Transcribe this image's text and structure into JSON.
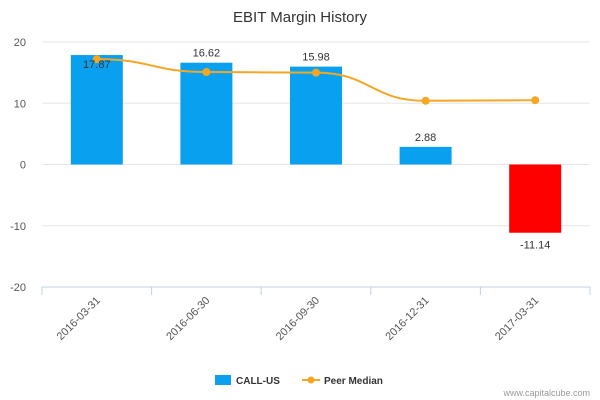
{
  "chart_data": {
    "type": "bar",
    "title": "EBIT Margin History",
    "categories": [
      "2016-03-31",
      "2016-06-30",
      "2016-09-30",
      "2016-12-31",
      "2017-03-31"
    ],
    "series": [
      {
        "name": "CALL-US",
        "type": "bar",
        "values": [
          17.87,
          16.62,
          15.98,
          2.88,
          -11.14
        ],
        "color": "#0aa0f0",
        "negative_color": "#ff0000"
      },
      {
        "name": "Peer Median",
        "type": "line",
        "values": [
          17.2,
          15.1,
          15.0,
          10.4,
          10.5
        ],
        "color": "#f5a623"
      }
    ],
    "ylim": [
      -20,
      20
    ],
    "yticks": [
      "20",
      "10",
      "0",
      "-10",
      "-20"
    ],
    "data_labels": [
      "17.87",
      "16.62",
      "15.98",
      "2.88",
      "-11.14"
    ],
    "legend_position": "bottom-center"
  },
  "credit": "www.capitalcube.com"
}
